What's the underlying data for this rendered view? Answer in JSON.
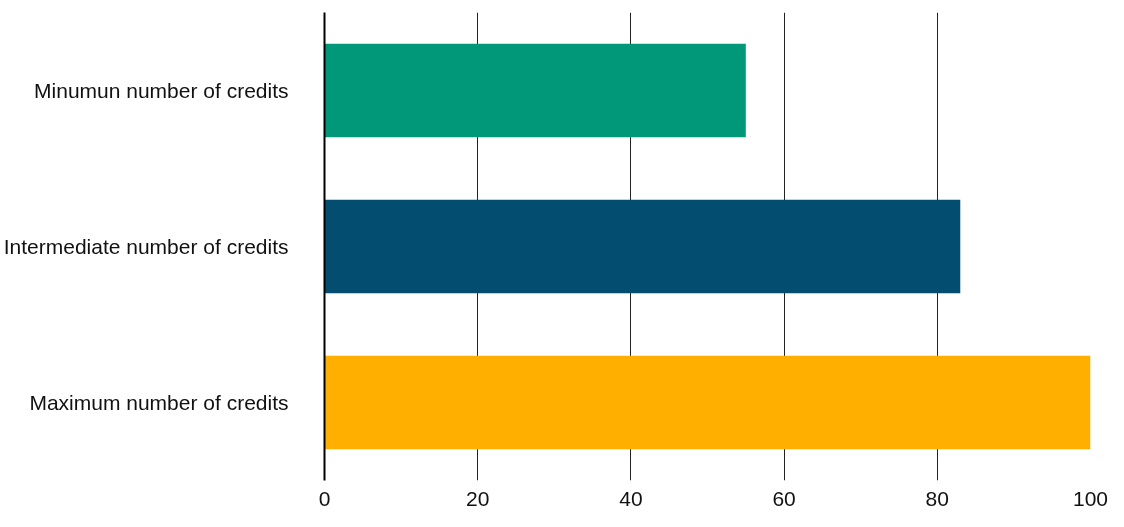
{
  "chart_data": {
    "type": "bar",
    "orientation": "horizontal",
    "categories": [
      "Minumun number of credits",
      "Intermediate number of credits",
      "Maximum number of credits"
    ],
    "values": [
      55,
      83,
      100
    ],
    "colors": [
      "#009879",
      "#034e70",
      "#ffaf00"
    ],
    "xlim": [
      0,
      100
    ],
    "xticks": [
      0,
      20,
      40,
      60,
      80,
      100
    ],
    "grid": "x"
  }
}
